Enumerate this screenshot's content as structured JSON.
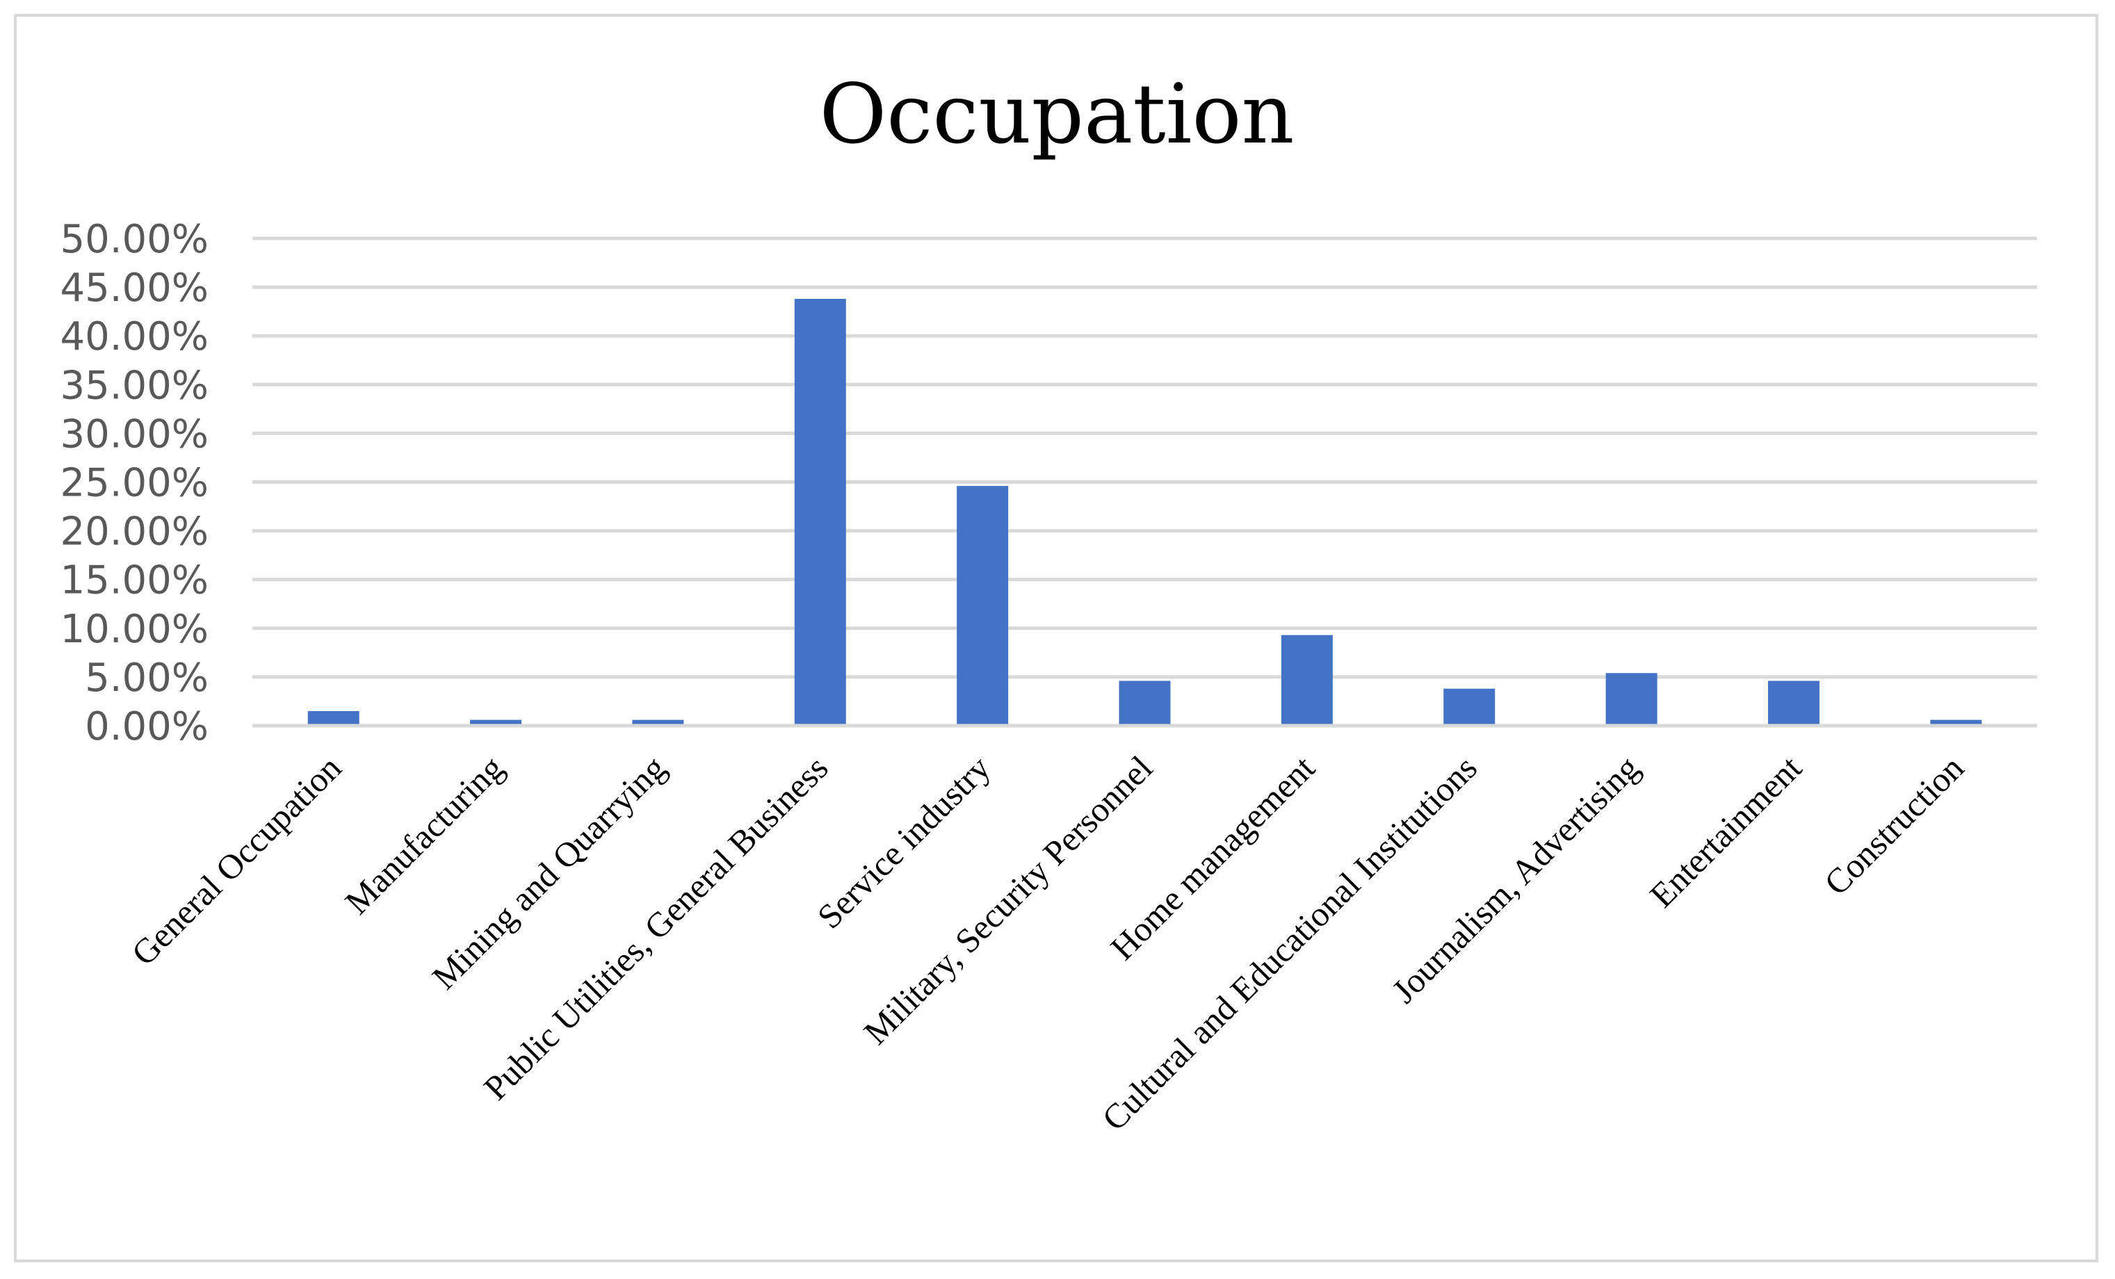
{
  "chart_data": {
    "type": "bar",
    "title": "Occupation",
    "xlabel": "",
    "ylabel": "",
    "ylim": [
      0,
      0.5
    ],
    "ytick_step": 0.05,
    "ytick_labels": [
      "0.00%",
      "5.00%",
      "10.00%",
      "15.00%",
      "20.00%",
      "25.00%",
      "30.00%",
      "35.00%",
      "40.00%",
      "45.00%",
      "50.00%"
    ],
    "grid": true,
    "legend": "none",
    "bar_color": "#4472c4",
    "categories": [
      "General Occupation",
      "Manufacturing",
      "Mining and Quarrying",
      "Public Utilities, General Business",
      "Service industry",
      "Military, Security Personnel",
      "Home management",
      "Cultural and Educational Institutions",
      "Journalism, Advertising",
      "Entertainment",
      "Construction"
    ],
    "values": [
      0.015,
      0.006,
      0.006,
      0.438,
      0.246,
      0.046,
      0.093,
      0.038,
      0.054,
      0.046,
      0.006
    ]
  }
}
